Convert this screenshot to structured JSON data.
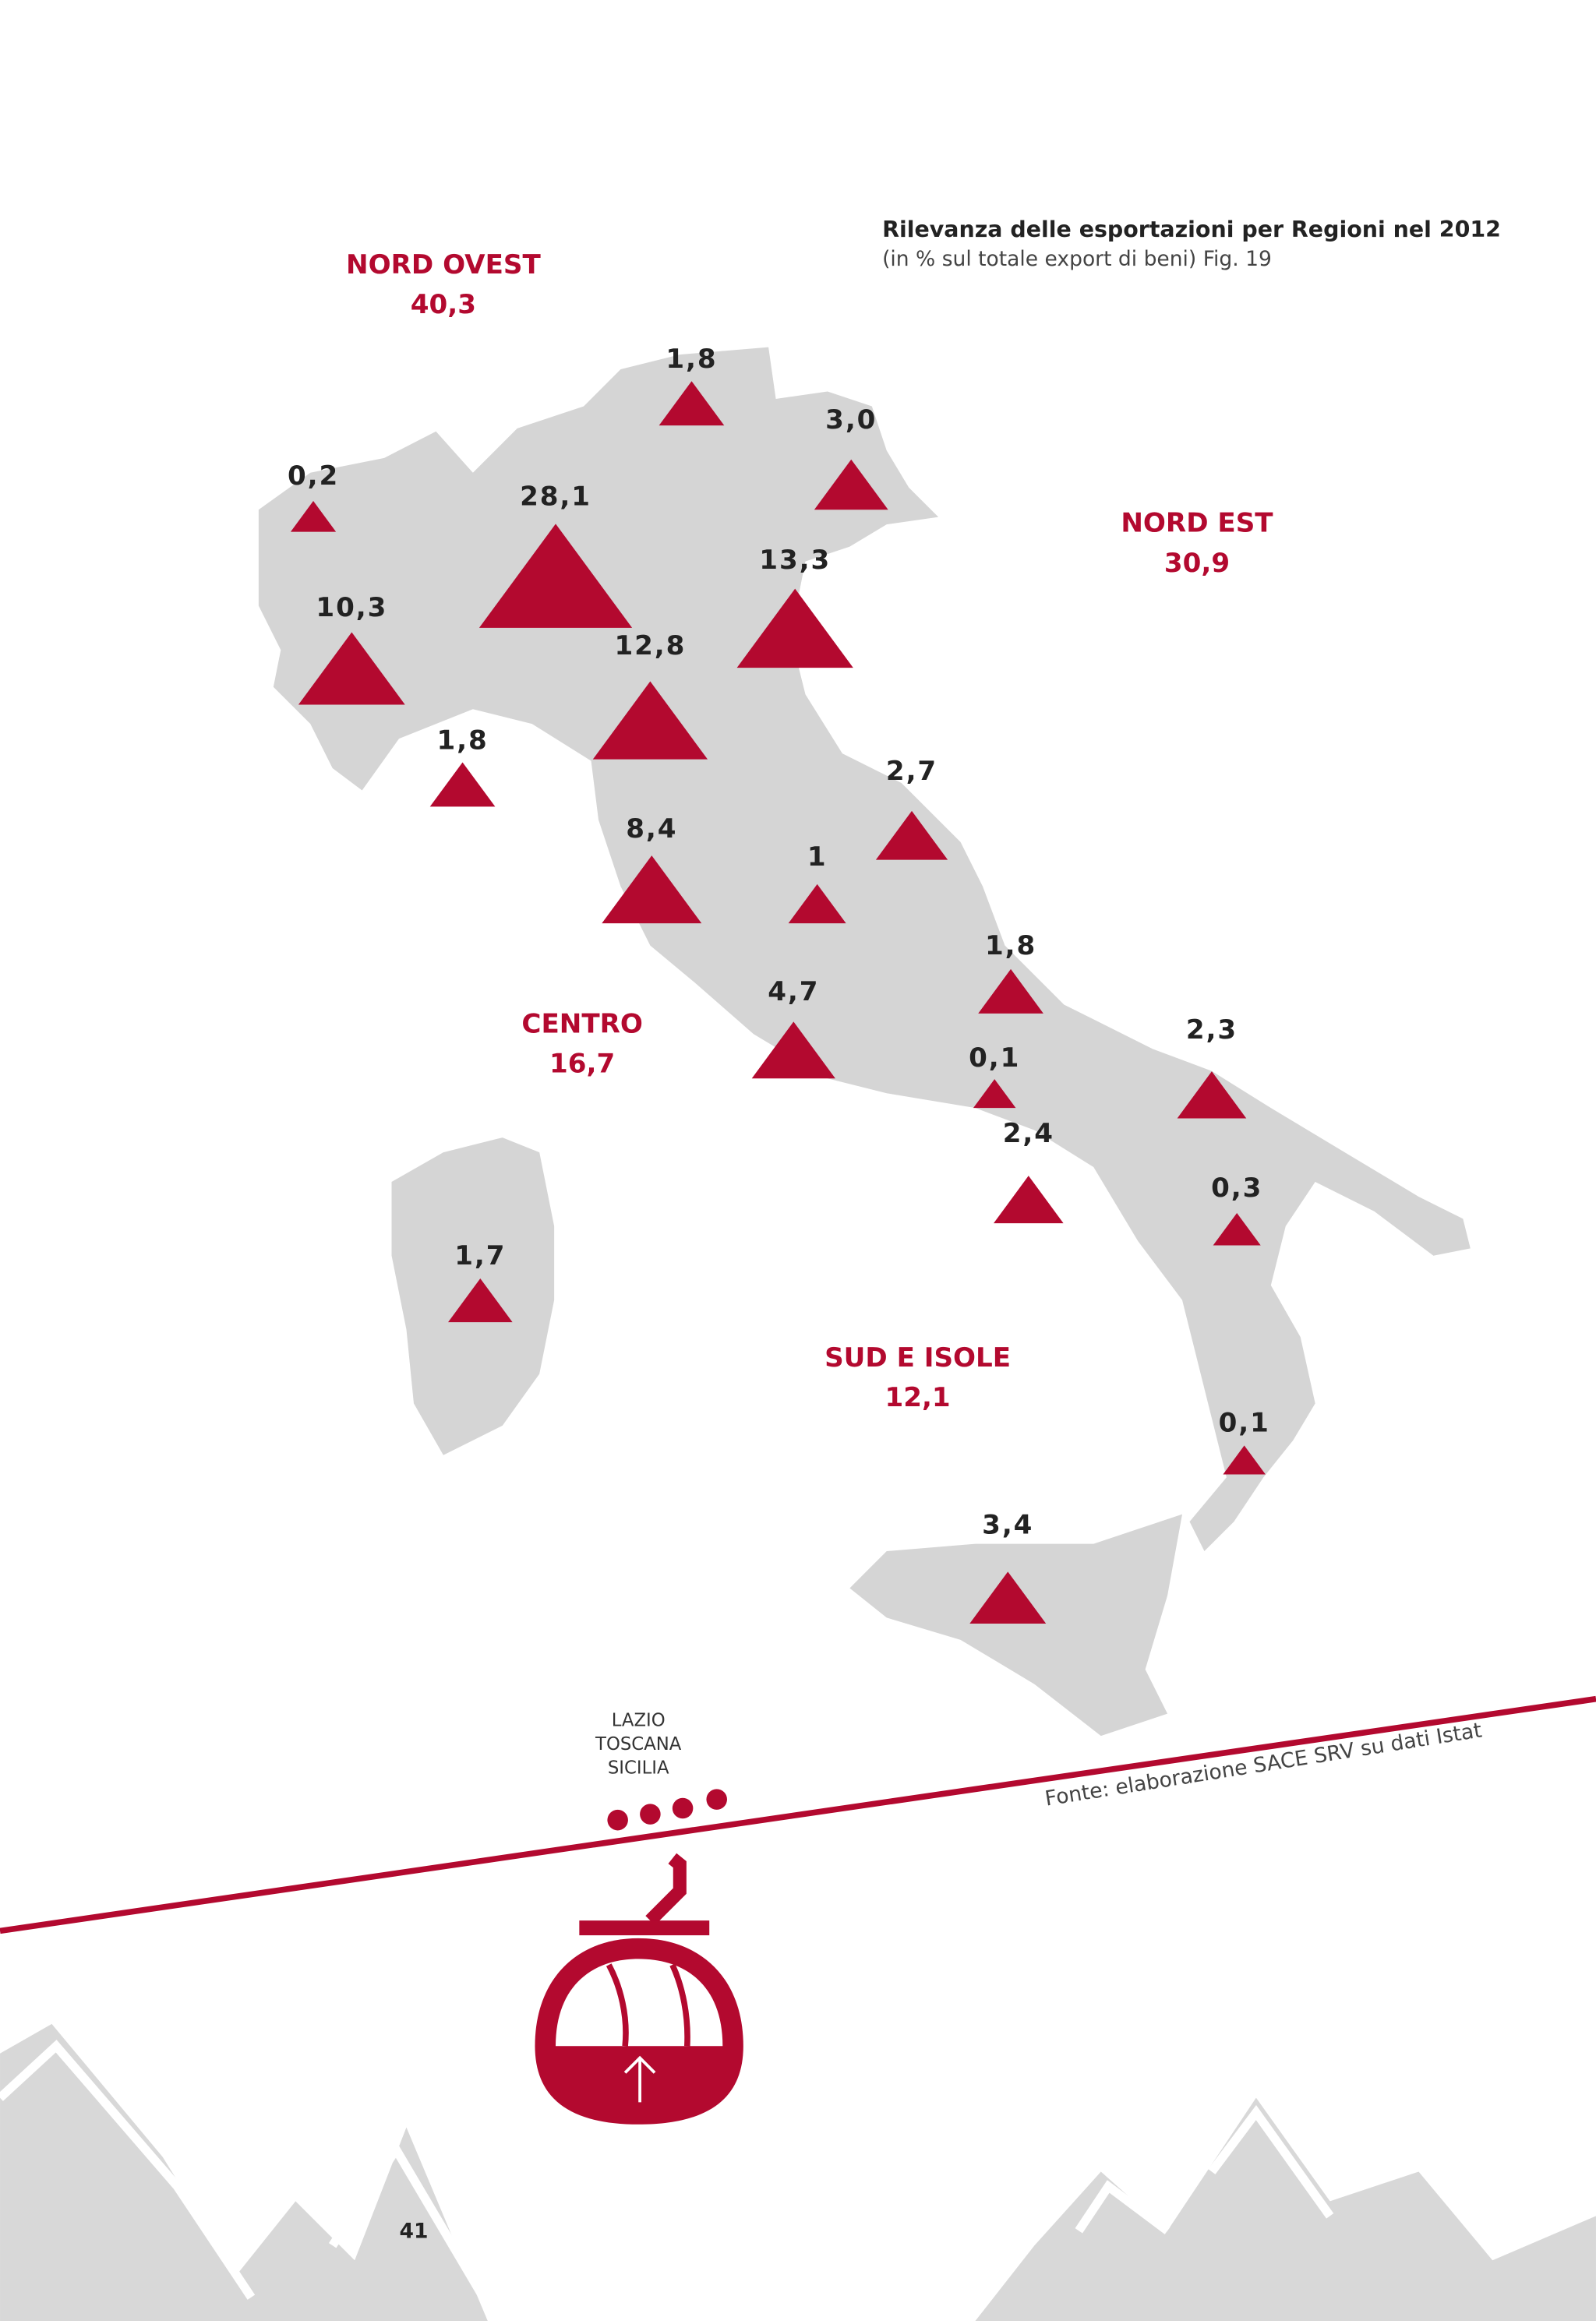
{
  "title": "Rilevanza delle esportazioni per Regioni nel 2012",
  "subtitle": "(in % sul totale export di beni) Fig. 19",
  "macro_areas": [
    {
      "name": "NORD OVEST",
      "share": "40,3"
    },
    {
      "name": "NORD EST",
      "share": "30,9"
    },
    {
      "name": "CENTRO",
      "share": "16,7"
    },
    {
      "name": "SUD E ISOLE",
      "share": "12,1"
    }
  ],
  "regions": [
    {
      "value": 0.2,
      "label": "0,2"
    },
    {
      "value": 28.1,
      "label": "28,1"
    },
    {
      "value": 1.8,
      "label": "1,8"
    },
    {
      "value": 3.0,
      "label": "3,0"
    },
    {
      "value": 13.3,
      "label": "13,3"
    },
    {
      "value": 10.3,
      "label": "10,3"
    },
    {
      "value": 12.8,
      "label": "12,8"
    },
    {
      "value": 1.8,
      "label": "1,8"
    },
    {
      "value": 2.7,
      "label": "2,7"
    },
    {
      "value": 8.4,
      "label": "8,4"
    },
    {
      "value": 1,
      "label": "1"
    },
    {
      "value": 1.8,
      "label": "1,8"
    },
    {
      "value": 4.7,
      "label": "4,7"
    },
    {
      "value": 0.1,
      "label": "0,1"
    },
    {
      "value": 2.3,
      "label": "2,3"
    },
    {
      "value": 2.4,
      "label": "2,4"
    },
    {
      "value": 0.3,
      "label": "0,3"
    },
    {
      "value": 1.7,
      "label": "1,7"
    },
    {
      "value": 0.1,
      "label": "0,1"
    },
    {
      "value": 3.4,
      "label": "3,4"
    }
  ],
  "gondola_labels": [
    "LAZIO",
    "TOSCANA",
    "SICILIA"
  ],
  "source": "Fonte: elaborazione SACE SRV su dati Istat",
  "page_number": "41"
}
